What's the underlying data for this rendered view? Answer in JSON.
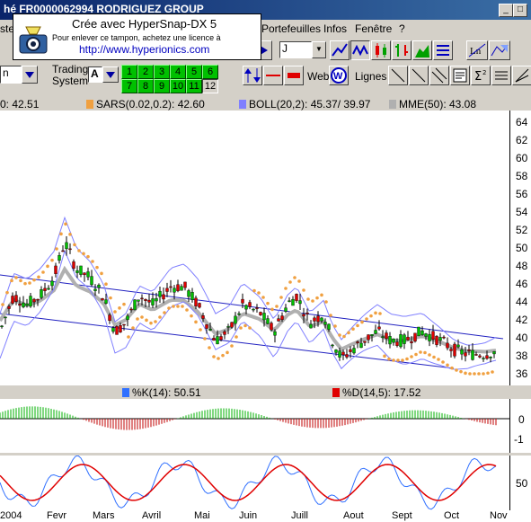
{
  "window": {
    "title": "hé    FR0000062994  RODRIGUEZ GROUP"
  },
  "stamp": {
    "line1": "Crée avec HyperSnap-DX 5",
    "line2": "Pour enlever ce tampon, achetez une licence à",
    "line3": "http://www.hyperionics.com"
  },
  "menu": {
    "left_fragment": "ster",
    "items": [
      "Portefeuilles",
      "Infos",
      "Fenêtre",
      "?"
    ]
  },
  "toolbar1": {
    "period_value": "J"
  },
  "toolbar2": {
    "left_value": "n",
    "ts_label_line1": "Trading",
    "ts_label_line2": "System",
    "ts_value": "A",
    "numbers_row1": [
      "1",
      "2",
      "3",
      "4",
      "5",
      "6"
    ],
    "numbers_row2": [
      "7",
      "8",
      "9",
      "10",
      "11",
      "12"
    ],
    "selected_number": "12",
    "web_label": "Web",
    "lines_label": "Lignes"
  },
  "indicators": {
    "price": "0: 42.51",
    "sars": "SARS(0.02,0.2): 42.60",
    "boll": "BOLL(20,2): 45.37/ 39.97",
    "mme": "MME(50): 43.08",
    "stoch_k": "%K(14): 50.51",
    "stoch_d": "%D(14,5): 17.52"
  },
  "colors": {
    "sars": "#f0a040",
    "boll": "#8080ff",
    "mme": "#b0b0b0",
    "candle_up": "#00c000",
    "candle_down": "#e00000",
    "channel": "#2020c0",
    "stoch_k": "#3070ff",
    "stoch_d": "#e00000",
    "hist_pos": "#00b000",
    "hist_neg": "#c00000"
  },
  "y_axis_price": [
    "64",
    "62",
    "60",
    "58",
    "56",
    "54",
    "52",
    "50",
    "48",
    "46",
    "44",
    "42",
    "40",
    "38",
    "36"
  ],
  "y_axis_osc": [
    "0",
    "-1"
  ],
  "y_axis_stoch": [
    "50"
  ],
  "x_axis": [
    "2004",
    "Fevr",
    "Mars",
    "Avril",
    "Mai",
    "Juin",
    "Juill",
    "Aout",
    "Sept",
    "Oct",
    "Nov"
  ]
}
